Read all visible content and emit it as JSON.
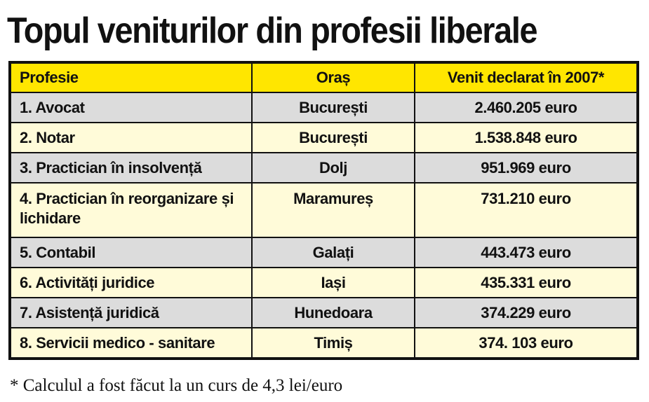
{
  "title": "Topul veniturilor din profesii liberale",
  "table": {
    "headers": {
      "profession": "Profesie",
      "city": "Oraș",
      "income": "Venit declarat în 2007*"
    },
    "rows": [
      {
        "profession": "1. Avocat",
        "city": "București",
        "income": "2.460.205 euro"
      },
      {
        "profession": "2. Notar",
        "city": "București",
        "income": "1.538.848 euro"
      },
      {
        "profession": "3. Practician în insolvență",
        "city": "Dolj",
        "income": "951.969 euro"
      },
      {
        "profession": "4. Practician în reorganizare și lichidare",
        "city": "Maramureș",
        "income": "731.210 euro"
      },
      {
        "profession": "5. Contabil",
        "city": "Galați",
        "income": "443.473 euro"
      },
      {
        "profession": "6. Activități juridice",
        "city": "Iași",
        "income": "435.331 euro"
      },
      {
        "profession": "7. Asistență juridică",
        "city": "Hunedoara",
        "income": "374.229 euro"
      },
      {
        "profession": "8. Servicii medico - sanitare",
        "city": "Timiș",
        "income": "374. 103 euro"
      }
    ]
  },
  "footnote": "* Calculul a fost făcut la un curs de 4,3 lei/euro",
  "colors": {
    "header_bg": "#ffe600",
    "row_gray": "#dcdcdc",
    "row_cream": "#fffbd9",
    "border": "#111111"
  }
}
